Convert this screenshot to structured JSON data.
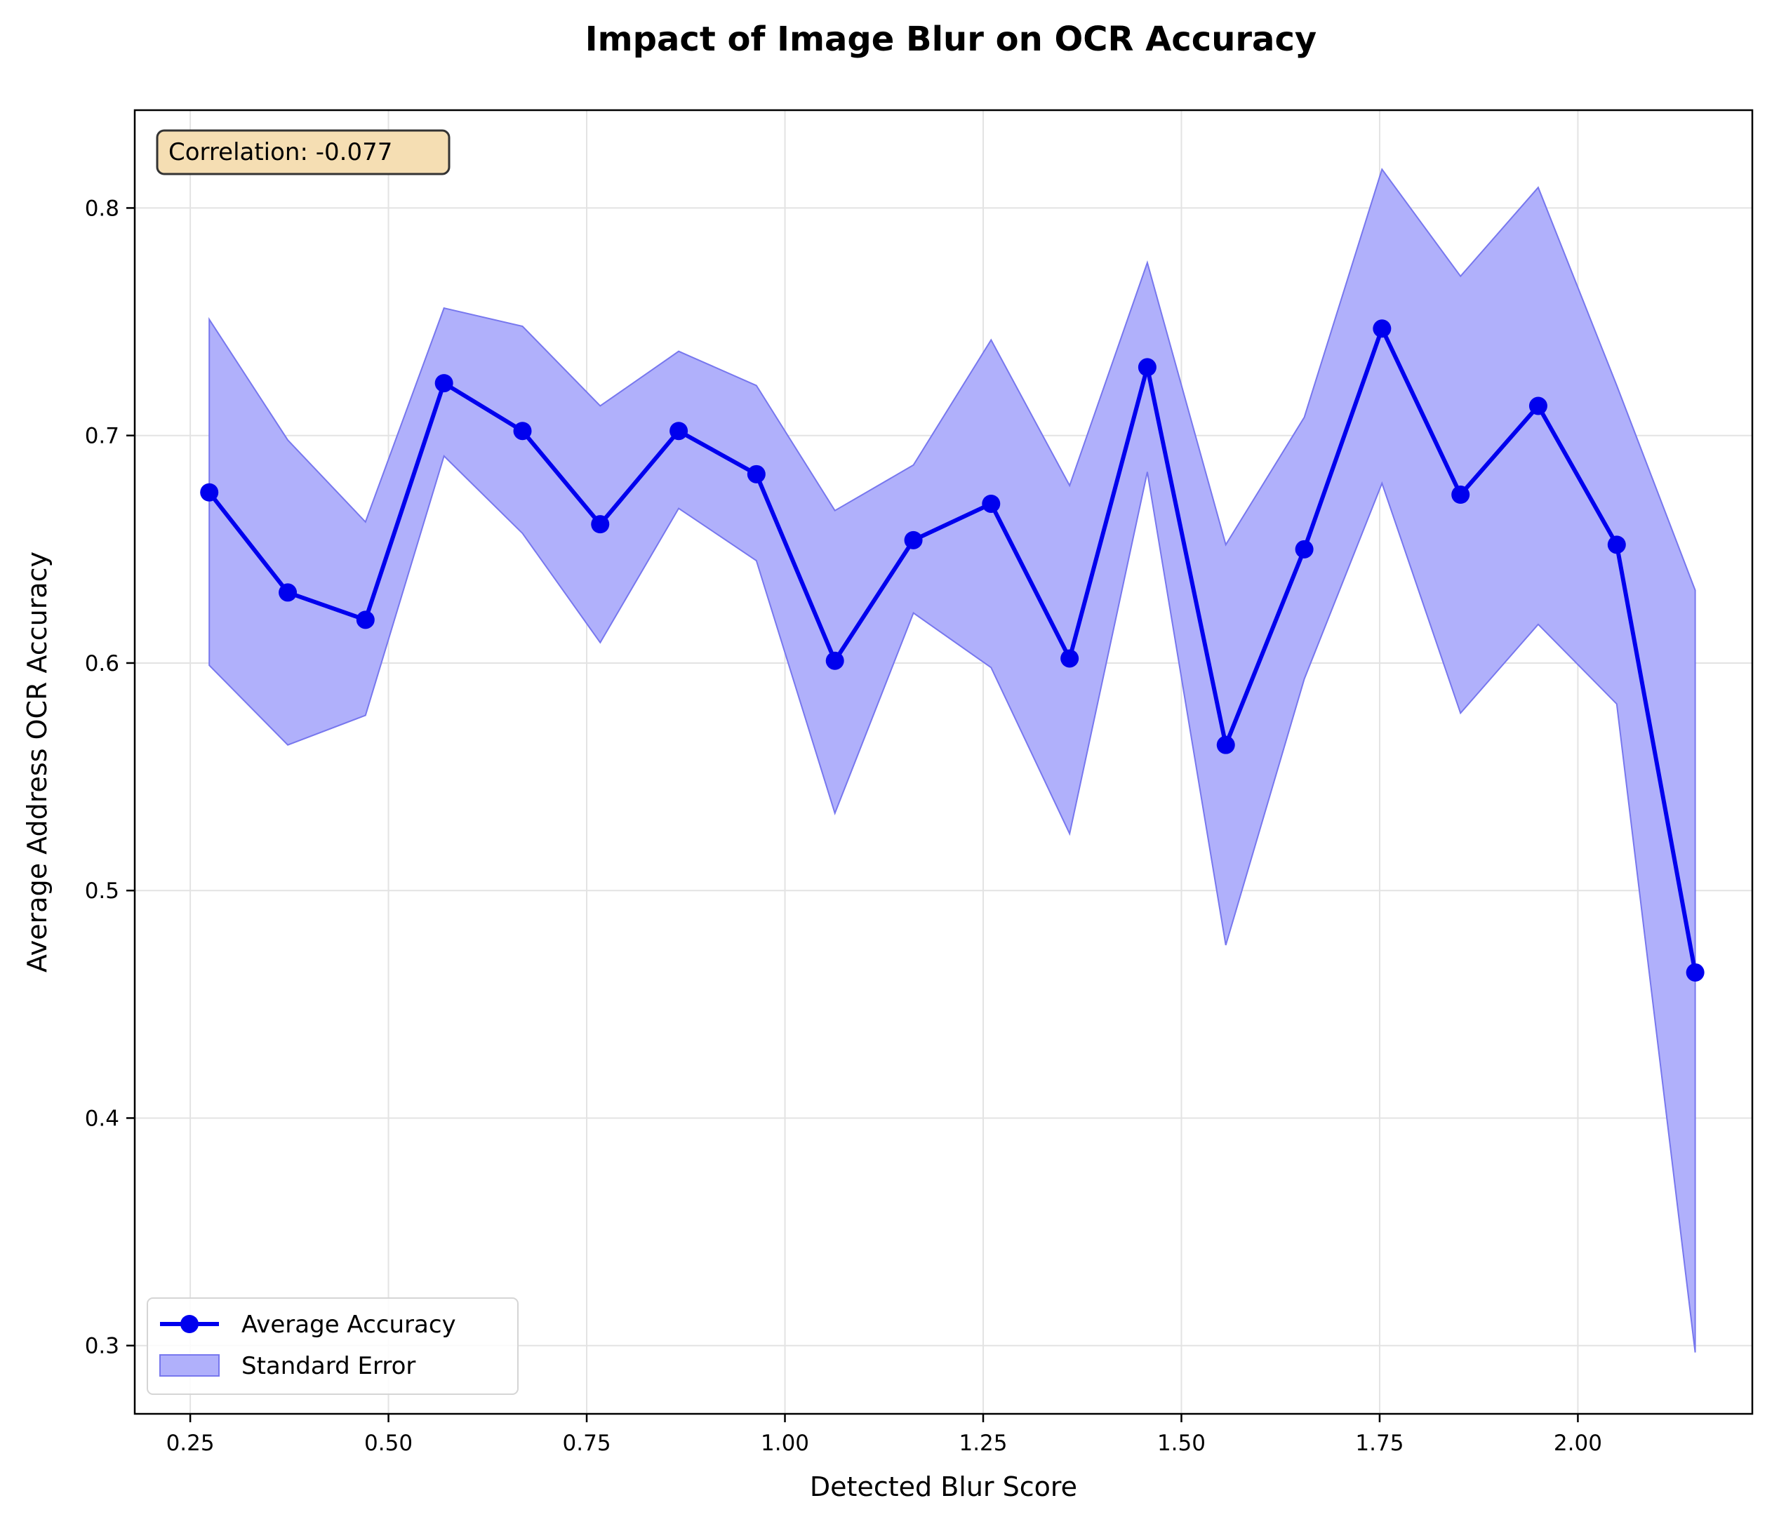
{
  "chart_data": {
    "type": "line",
    "title": "Impact of Image Blur on OCR Accuracy",
    "xlabel": "Detected Blur Score",
    "ylabel": "Average Address OCR Accuracy",
    "xlim": [
      0.18,
      2.22
    ],
    "ylim": [
      0.27,
      0.843
    ],
    "x_ticks": [
      0.25,
      0.5,
      0.75,
      1.0,
      1.25,
      1.5,
      1.75,
      2.0
    ],
    "x_tick_labels": [
      "0.25",
      "0.50",
      "0.75",
      "1.00",
      "1.25",
      "1.50",
      "1.75",
      "2.00"
    ],
    "y_ticks": [
      0.3,
      0.4,
      0.5,
      0.6,
      0.7,
      0.8
    ],
    "y_tick_labels": [
      "0.3",
      "0.4",
      "0.5",
      "0.6",
      "0.7",
      "0.8"
    ],
    "grid": true,
    "legend_position": "lower-left",
    "annotation": "Correlation: -0.077",
    "line_color": "#0000ee",
    "band_color": "#b0b0fb",
    "annotation_bg": "#f5deb3",
    "x": [
      0.274,
      0.373,
      0.471,
      0.57,
      0.669,
      0.767,
      0.866,
      0.964,
      1.063,
      1.162,
      1.26,
      1.359,
      1.457,
      1.556,
      1.655,
      1.753,
      1.852,
      1.95,
      2.049,
      2.148
    ],
    "series": [
      {
        "name": "Average Accuracy",
        "values": [
          0.675,
          0.631,
          0.619,
          0.723,
          0.702,
          0.661,
          0.702,
          0.683,
          0.601,
          0.654,
          0.67,
          0.602,
          0.73,
          0.564,
          0.65,
          0.747,
          0.674,
          0.713,
          0.652,
          0.464
        ]
      },
      {
        "name": "Standard Error",
        "upper": [
          0.751,
          0.698,
          0.662,
          0.756,
          0.748,
          0.713,
          0.737,
          0.722,
          0.667,
          0.687,
          0.742,
          0.678,
          0.776,
          0.652,
          0.708,
          0.817,
          0.77,
          0.809,
          0.722,
          0.632
        ],
        "lower": [
          0.599,
          0.564,
          0.577,
          0.691,
          0.657,
          0.609,
          0.668,
          0.645,
          0.534,
          0.622,
          0.598,
          0.525,
          0.684,
          0.476,
          0.593,
          0.679,
          0.578,
          0.617,
          0.582,
          0.297
        ]
      }
    ]
  }
}
